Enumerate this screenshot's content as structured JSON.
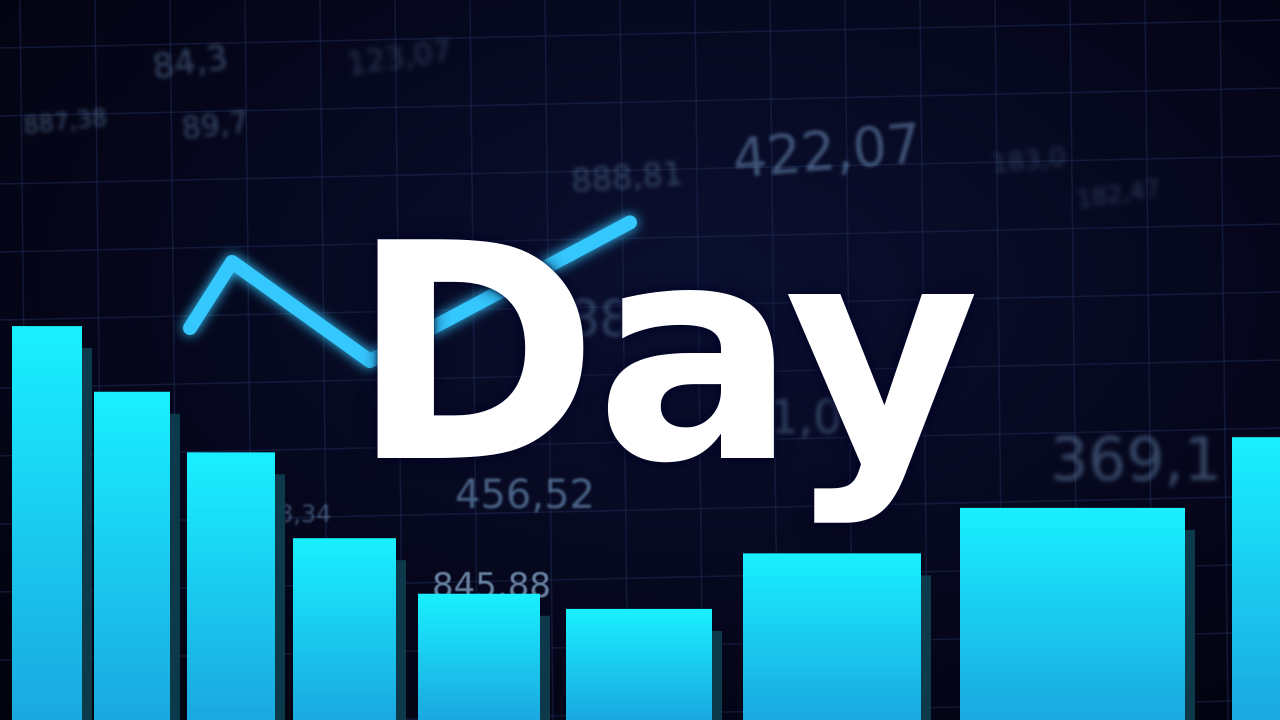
{
  "title": "Day",
  "background_numbers": [
    "887,38",
    "84,3",
    "89,7",
    "123,07",
    "888,81",
    "422,07",
    "183,0",
    "182,47",
    "9,88",
    "91,0",
    "369,1",
    "456,52",
    "8,34",
    "845,88"
  ],
  "colors": {
    "background": "#05061a",
    "grid": "#1c2a52",
    "bar_top": "#19f0ff",
    "bar_bottom": "#1aa8e0",
    "trend_line": "#35c8ff",
    "title": "#ffffff"
  },
  "chart_data": {
    "type": "bar",
    "values": [
      78,
      65,
      53,
      36,
      25,
      22,
      33,
      42,
      56
    ],
    "trend": {
      "type": "line",
      "y": [
        40,
        60,
        30,
        72
      ]
    }
  }
}
